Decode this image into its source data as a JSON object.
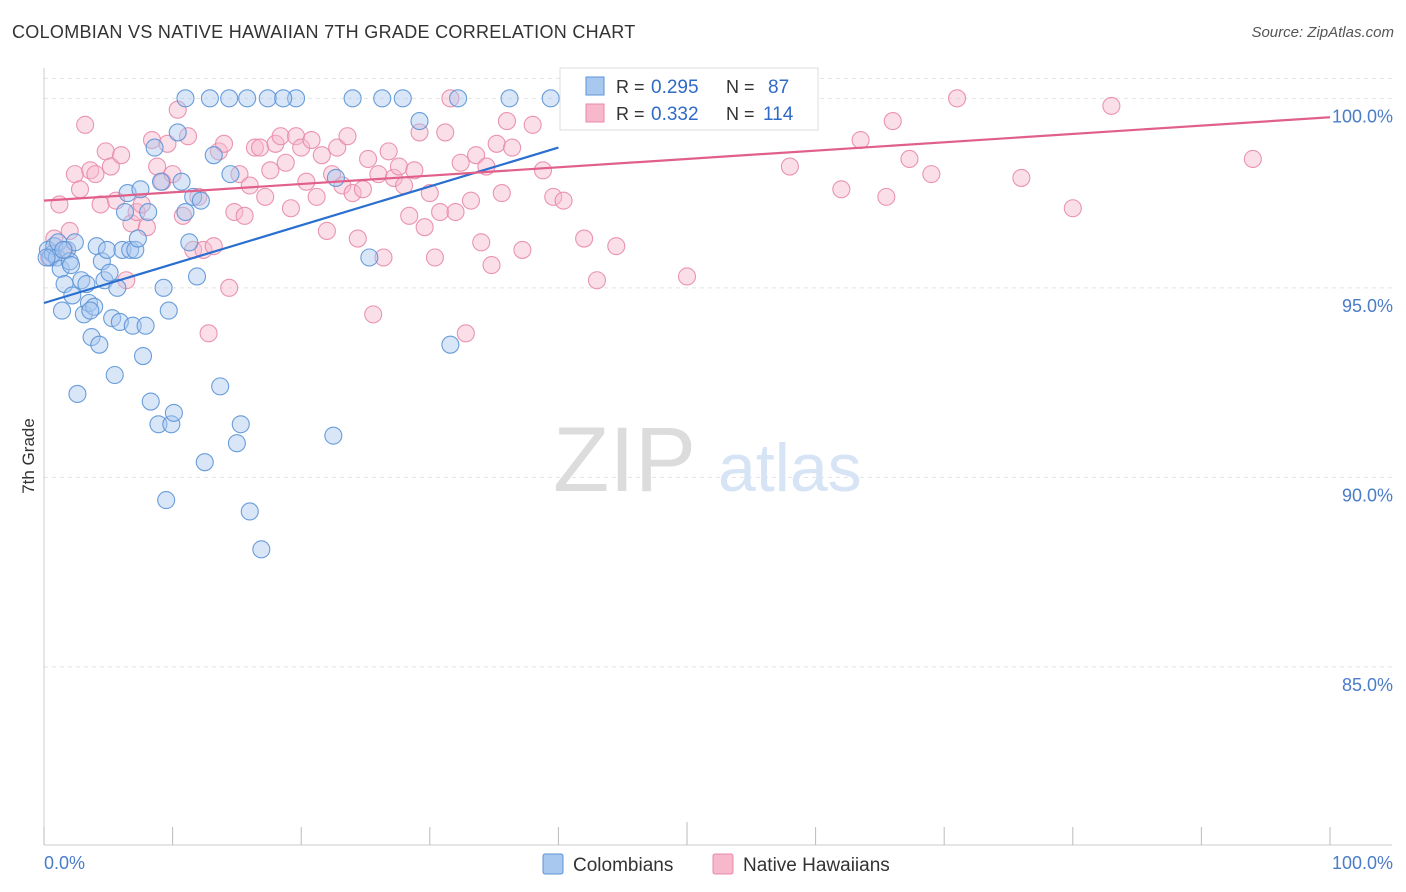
{
  "header": {
    "title": "COLOMBIAN VS NATIVE HAWAIIAN 7TH GRADE CORRELATION CHART",
    "source": "Source: ZipAtlas.com"
  },
  "watermark": {
    "zip": "ZIP",
    "atlas": "atlas"
  },
  "legend_top": {
    "rows": [
      {
        "r_label": "R =",
        "r_value": "0.295",
        "n_label": "N =",
        "n_value": "87"
      },
      {
        "r_label": "R =",
        "r_value": "0.332",
        "n_label": "N =",
        "n_value": "114"
      }
    ]
  },
  "legend_bottom": {
    "items": [
      "Colombians",
      "Native Hawaiians"
    ]
  },
  "colors": {
    "blue_fill": "#a8c8f0",
    "blue_stroke": "#5b93d6",
    "blue_line": "#2a6fd0",
    "pink_fill": "#f7b8cb",
    "pink_stroke": "#e88aa8",
    "pink_line": "#e0608a",
    "tick_text": "#4a7cc8",
    "grid": "#e2e2e2"
  },
  "chart_data": {
    "type": "scatter",
    "title": "COLOMBIAN VS NATIVE HAWAIIAN 7TH GRADE CORRELATION CHART",
    "xlabel": "",
    "ylabel": "7th Grade",
    "xlim": [
      0,
      100
    ],
    "ylim": [
      80.3,
      100.8
    ],
    "x_tick_labels": [
      "0.0%",
      "100.0%"
    ],
    "y_ticks": [
      85,
      90,
      95,
      100
    ],
    "y_tick_labels": [
      "85.0%",
      "90.0%",
      "95.0%",
      "100.0%"
    ],
    "grid": true,
    "legend_position": "bottom",
    "series": [
      {
        "name": "Colombians",
        "r": 0.295,
        "n": 87,
        "trend": {
          "x": [
            0,
            40
          ],
          "y": [
            94.6,
            98.7
          ]
        },
        "points": [
          [
            0.3,
            96.0
          ],
          [
            0.5,
            95.8
          ],
          [
            0.7,
            95.9
          ],
          [
            0.8,
            96.1
          ],
          [
            1.0,
            95.8
          ],
          [
            1.1,
            96.2
          ],
          [
            1.3,
            95.5
          ],
          [
            1.4,
            94.4
          ],
          [
            1.6,
            95.1
          ],
          [
            1.8,
            96.0
          ],
          [
            2.0,
            95.7
          ],
          [
            2.2,
            94.8
          ],
          [
            2.4,
            96.2
          ],
          [
            2.6,
            92.2
          ],
          [
            2.9,
            95.2
          ],
          [
            3.1,
            94.3
          ],
          [
            3.3,
            95.1
          ],
          [
            3.5,
            94.6
          ],
          [
            3.7,
            93.7
          ],
          [
            3.9,
            94.5
          ],
          [
            4.1,
            96.1
          ],
          [
            4.3,
            93.5
          ],
          [
            4.5,
            95.7
          ],
          [
            4.7,
            95.2
          ],
          [
            4.9,
            96.0
          ],
          [
            5.1,
            95.4
          ],
          [
            5.3,
            94.2
          ],
          [
            5.5,
            92.7
          ],
          [
            5.7,
            95.0
          ],
          [
            5.9,
            94.1
          ],
          [
            6.1,
            96.0
          ],
          [
            6.3,
            97.0
          ],
          [
            6.5,
            97.5
          ],
          [
            6.7,
            96.0
          ],
          [
            6.9,
            94.0
          ],
          [
            7.1,
            96.0
          ],
          [
            7.3,
            96.3
          ],
          [
            7.5,
            97.6
          ],
          [
            7.7,
            93.2
          ],
          [
            7.9,
            94.0
          ],
          [
            8.1,
            97.0
          ],
          [
            8.3,
            92.0
          ],
          [
            8.6,
            98.7
          ],
          [
            8.9,
            91.4
          ],
          [
            9.1,
            97.8
          ],
          [
            9.3,
            95.0
          ],
          [
            9.5,
            89.4
          ],
          [
            9.7,
            94.4
          ],
          [
            9.9,
            91.4
          ],
          [
            10.1,
            91.7
          ],
          [
            10.4,
            99.1
          ],
          [
            10.7,
            97.8
          ],
          [
            11.0,
            97.0
          ],
          [
            11.3,
            96.2
          ],
          [
            11.6,
            97.4
          ],
          [
            11.9,
            95.3
          ],
          [
            12.2,
            97.3
          ],
          [
            12.5,
            90.4
          ],
          [
            13.2,
            98.5
          ],
          [
            13.7,
            92.4
          ],
          [
            14.5,
            98.0
          ],
          [
            15.0,
            90.9
          ],
          [
            15.3,
            91.4
          ],
          [
            16.0,
            89.1
          ],
          [
            16.9,
            88.1
          ],
          [
            11.0,
            100.0
          ],
          [
            12.9,
            100.0
          ],
          [
            14.4,
            100.0
          ],
          [
            15.8,
            100.0
          ],
          [
            17.4,
            100.0
          ],
          [
            19.6,
            100.0
          ],
          [
            24.0,
            100.0
          ],
          [
            26.3,
            100.0
          ],
          [
            27.9,
            100.0
          ],
          [
            32.2,
            100.0
          ],
          [
            36.2,
            100.0
          ],
          [
            39.4,
            100.0
          ],
          [
            18.6,
            100.0
          ],
          [
            22.7,
            97.9
          ],
          [
            25.3,
            95.8
          ],
          [
            29.2,
            99.4
          ],
          [
            31.6,
            93.5
          ],
          [
            22.5,
            91.1
          ],
          [
            2.1,
            95.6
          ],
          [
            3.6,
            94.4
          ],
          [
            1.5,
            96.0
          ],
          [
            0.2,
            95.8
          ]
        ]
      },
      {
        "name": "Native Hawaiians",
        "r": 0.332,
        "n": 114,
        "trend": {
          "x": [
            0,
            100
          ],
          "y": [
            97.3,
            99.5
          ]
        },
        "points": [
          [
            0.4,
            95.8
          ],
          [
            0.8,
            96.3
          ],
          [
            1.2,
            97.2
          ],
          [
            1.6,
            96.0
          ],
          [
            2.0,
            96.5
          ],
          [
            2.4,
            98.0
          ],
          [
            2.8,
            97.6
          ],
          [
            3.2,
            99.3
          ],
          [
            3.6,
            98.1
          ],
          [
            4.0,
            98.0
          ],
          [
            4.4,
            97.2
          ],
          [
            4.8,
            98.6
          ],
          [
            5.2,
            98.2
          ],
          [
            5.6,
            97.3
          ],
          [
            6.0,
            98.5
          ],
          [
            6.4,
            95.2
          ],
          [
            6.8,
            96.7
          ],
          [
            7.2,
            97.0
          ],
          [
            7.6,
            97.2
          ],
          [
            8.0,
            96.6
          ],
          [
            8.4,
            98.9
          ],
          [
            8.8,
            98.2
          ],
          [
            9.2,
            97.8
          ],
          [
            9.6,
            98.8
          ],
          [
            10.0,
            98.0
          ],
          [
            10.4,
            99.7
          ],
          [
            10.8,
            96.9
          ],
          [
            11.2,
            99.0
          ],
          [
            11.6,
            96.0
          ],
          [
            12.0,
            97.4
          ],
          [
            12.4,
            96.0
          ],
          [
            12.8,
            93.8
          ],
          [
            13.2,
            96.1
          ],
          [
            13.6,
            98.6
          ],
          [
            14.0,
            98.8
          ],
          [
            14.4,
            95.0
          ],
          [
            14.8,
            97.0
          ],
          [
            15.2,
            98.0
          ],
          [
            15.6,
            96.9
          ],
          [
            16.0,
            97.7
          ],
          [
            16.4,
            98.7
          ],
          [
            16.8,
            98.7
          ],
          [
            17.2,
            97.4
          ],
          [
            17.6,
            98.1
          ],
          [
            18.0,
            98.8
          ],
          [
            18.4,
            99.0
          ],
          [
            18.8,
            98.3
          ],
          [
            19.2,
            97.1
          ],
          [
            19.6,
            99.0
          ],
          [
            20.0,
            98.7
          ],
          [
            20.4,
            97.8
          ],
          [
            20.8,
            98.9
          ],
          [
            21.2,
            97.4
          ],
          [
            21.6,
            98.5
          ],
          [
            22.0,
            96.5
          ],
          [
            22.4,
            98.0
          ],
          [
            22.8,
            98.7
          ],
          [
            23.2,
            97.7
          ],
          [
            23.6,
            99.0
          ],
          [
            24.0,
            97.5
          ],
          [
            24.4,
            96.3
          ],
          [
            24.8,
            97.6
          ],
          [
            25.2,
            98.4
          ],
          [
            25.6,
            94.3
          ],
          [
            26.0,
            98.0
          ],
          [
            26.4,
            95.8
          ],
          [
            26.8,
            98.6
          ],
          [
            27.2,
            97.9
          ],
          [
            27.6,
            98.2
          ],
          [
            28.0,
            97.7
          ],
          [
            28.4,
            96.9
          ],
          [
            28.8,
            98.1
          ],
          [
            29.2,
            99.1
          ],
          [
            29.6,
            96.6
          ],
          [
            30.0,
            97.5
          ],
          [
            30.4,
            95.8
          ],
          [
            30.8,
            97.0
          ],
          [
            31.2,
            99.1
          ],
          [
            31.6,
            100.0
          ],
          [
            32.0,
            97.0
          ],
          [
            32.4,
            98.3
          ],
          [
            32.8,
            93.8
          ],
          [
            33.2,
            97.3
          ],
          [
            33.6,
            98.5
          ],
          [
            34.0,
            96.2
          ],
          [
            34.4,
            98.2
          ],
          [
            34.8,
            95.6
          ],
          [
            35.2,
            98.8
          ],
          [
            35.6,
            97.5
          ],
          [
            36.0,
            99.4
          ],
          [
            36.4,
            98.7
          ],
          [
            37.2,
            96.0
          ],
          [
            38.0,
            99.3
          ],
          [
            38.8,
            98.1
          ],
          [
            39.6,
            97.4
          ],
          [
            40.4,
            97.3
          ],
          [
            41.2,
            100.0
          ],
          [
            42.0,
            96.3
          ],
          [
            43.0,
            95.2
          ],
          [
            44.5,
            96.1
          ],
          [
            46.4,
            99.8
          ],
          [
            50.0,
            95.3
          ],
          [
            58.0,
            98.2
          ],
          [
            62.0,
            97.6
          ],
          [
            63.5,
            98.9
          ],
          [
            65.5,
            97.4
          ],
          [
            66.0,
            99.4
          ],
          [
            67.3,
            98.4
          ],
          [
            69.0,
            98.0
          ],
          [
            71.0,
            100.0
          ],
          [
            76.0,
            97.9
          ],
          [
            80.0,
            97.1
          ],
          [
            83.0,
            99.8
          ],
          [
            94.0,
            98.4
          ]
        ]
      }
    ]
  }
}
